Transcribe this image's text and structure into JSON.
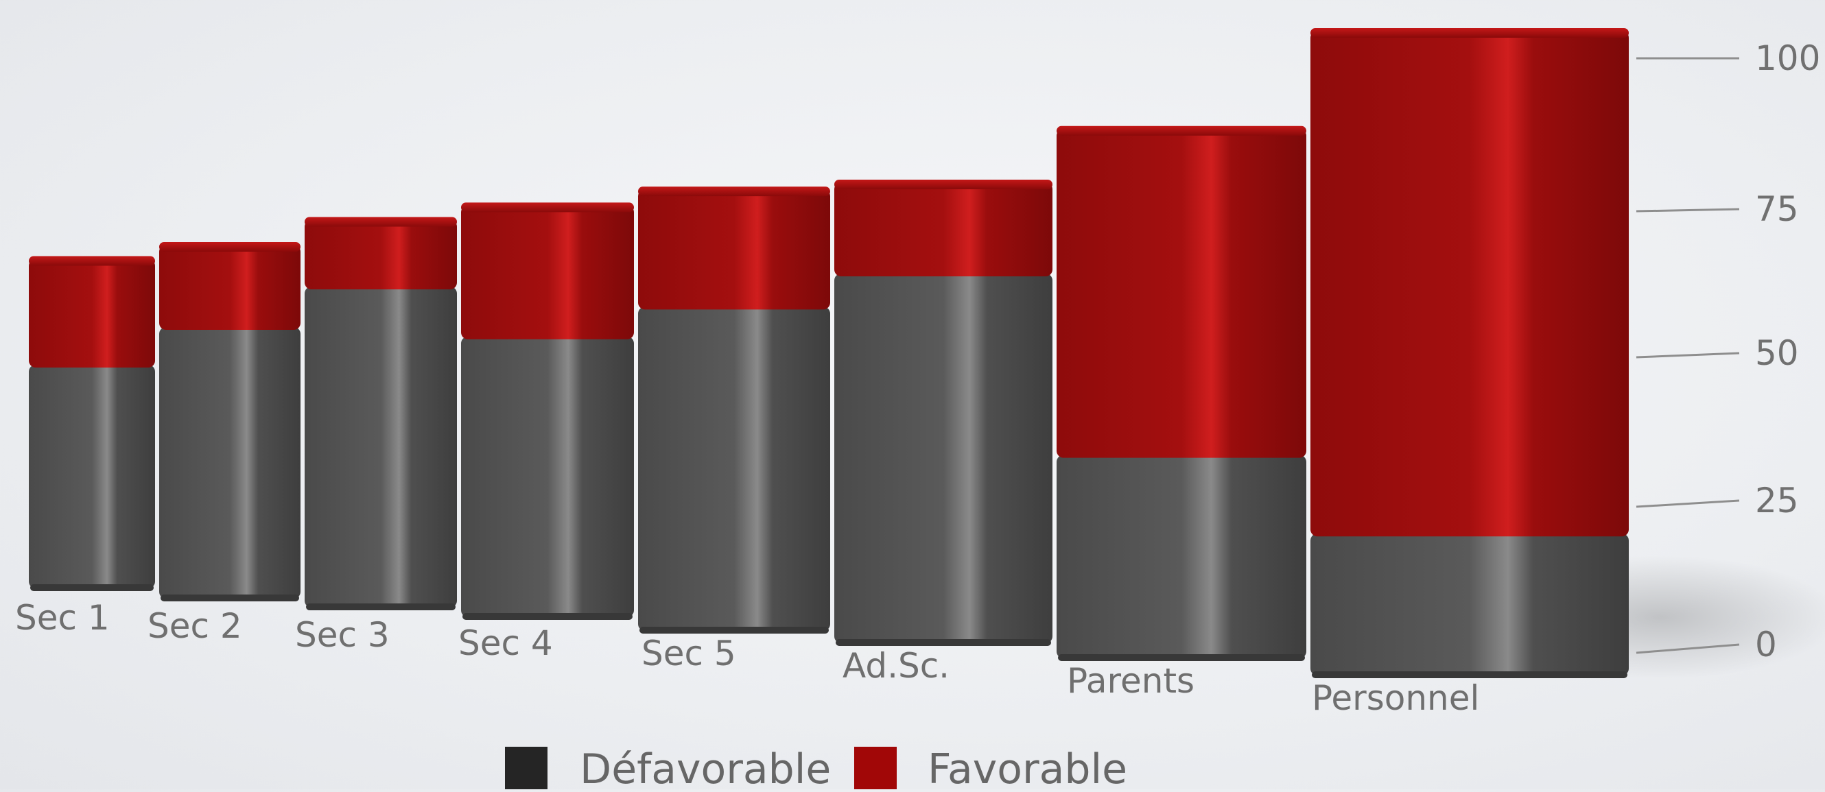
{
  "chart_data": {
    "type": "bar",
    "stacked": true,
    "categories": [
      "Sec 1",
      "Sec 2",
      "Sec 3",
      "Sec 4",
      "Sec 5",
      "Ad.Sc.",
      "Parents",
      "Personnel"
    ],
    "series": [
      {
        "name": "Défavorable",
        "color": "#555555",
        "values": [
          57,
          66,
          72,
          62,
          69,
          77,
          38,
          22
        ]
      },
      {
        "name": "Favorable",
        "color": "#a50d0d",
        "values": [
          27,
          20,
          15,
          29,
          25,
          19,
          61,
          78
        ]
      }
    ],
    "y_ticks": [
      0,
      25,
      50,
      75,
      100
    ],
    "ylim": [
      0,
      100
    ],
    "legend_position": "bottom",
    "grid": false
  }
}
